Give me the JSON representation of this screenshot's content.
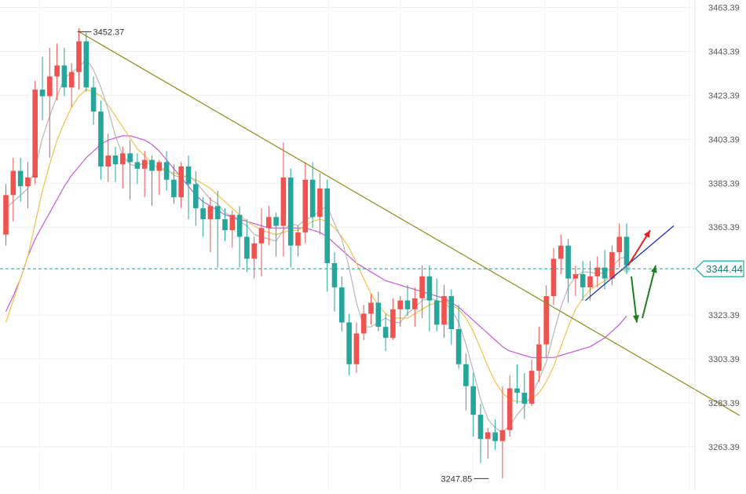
{
  "chart_data": {
    "type": "candlestick",
    "title": "",
    "xlabel": "",
    "ylabel": "",
    "y_axis": {
      "position": "right",
      "ticks": [
        "3463.39",
        "3443.39",
        "3423.39",
        "3403.39",
        "3383.39",
        "3363.39",
        "3323.39",
        "3303.39",
        "3283.39",
        "3263.39"
      ],
      "range": [
        3243.7,
        3466.8
      ]
    },
    "grid": true,
    "colors": {
      "up": "#ef5350",
      "down": "#26a69a",
      "ma_fast": "#b7b7b7",
      "ma_mid": "#f3c04a",
      "ma_slow": "#c65bd6",
      "trendline": "#8c8c1e",
      "support": "#1f2bbf",
      "arrow_up": "#e01f1f",
      "arrow_green": "#1e7e1e"
    },
    "current_price": {
      "label": "3344.44",
      "value": 3344.44
    },
    "annotations": [
      {
        "label": "3452.37",
        "value": 3452.37,
        "kind": "high"
      },
      {
        "label": "3247.85",
        "value": 3247.85,
        "kind": "low"
      }
    ],
    "candles": [
      [
        3360,
        3383,
        3355,
        3378
      ],
      [
        3378,
        3395,
        3366,
        3389
      ],
      [
        3389,
        3395,
        3375,
        3382
      ],
      [
        3382,
        3393,
        3372,
        3386
      ],
      [
        3386,
        3430,
        3383,
        3426
      ],
      [
        3426,
        3441,
        3412,
        3423
      ],
      [
        3423,
        3445,
        3395,
        3432
      ],
      [
        3432,
        3447,
        3421,
        3437
      ],
      [
        3437,
        3445,
        3423,
        3427
      ],
      [
        3427,
        3438,
        3418,
        3434
      ],
      [
        3434,
        3454,
        3426,
        3448
      ],
      [
        3448,
        3452,
        3425,
        3427
      ],
      [
        3427,
        3432,
        3410,
        3416
      ],
      [
        3416,
        3421,
        3385,
        3391
      ],
      [
        3391,
        3406,
        3384,
        3396
      ],
      [
        3396,
        3400,
        3384,
        3392
      ],
      [
        3392,
        3400,
        3381,
        3397
      ],
      [
        3397,
        3403,
        3376,
        3393
      ],
      [
        3393,
        3397,
        3383,
        3390
      ],
      [
        3390,
        3398,
        3377,
        3394
      ],
      [
        3394,
        3396,
        3373,
        3389
      ],
      [
        3389,
        3394,
        3378,
        3393
      ],
      [
        3393,
        3398,
        3380,
        3385
      ],
      [
        3385,
        3392,
        3374,
        3377
      ],
      [
        3377,
        3393,
        3372,
        3391
      ],
      [
        3391,
        3396,
        3367,
        3383
      ],
      [
        3383,
        3389,
        3364,
        3372
      ],
      [
        3372,
        3377,
        3359,
        3367
      ],
      [
        3367,
        3377,
        3352,
        3373
      ],
      [
        3373,
        3380,
        3345,
        3367
      ],
      [
        3367,
        3372,
        3357,
        3362
      ],
      [
        3362,
        3371,
        3354,
        3369
      ],
      [
        3369,
        3373,
        3345,
        3359
      ],
      [
        3359,
        3367,
        3343,
        3349
      ],
      [
        3349,
        3359,
        3340,
        3356
      ],
      [
        3356,
        3372,
        3341,
        3363
      ],
      [
        3363,
        3373,
        3355,
        3368
      ],
      [
        3368,
        3370,
        3350,
        3364
      ],
      [
        3364,
        3402,
        3350,
        3386
      ],
      [
        3386,
        3390,
        3345,
        3355
      ],
      [
        3355,
        3364,
        3350,
        3361
      ],
      [
        3361,
        3393,
        3356,
        3385
      ],
      [
        3385,
        3393,
        3363,
        3368
      ],
      [
        3368,
        3388,
        3360,
        3381
      ],
      [
        3381,
        3385,
        3334,
        3347
      ],
      [
        3347,
        3352,
        3325,
        3336
      ],
      [
        3336,
        3341,
        3316,
        3320
      ],
      [
        3320,
        3324,
        3296,
        3301
      ],
      [
        3301,
        3320,
        3297,
        3315
      ],
      [
        3315,
        3328,
        3312,
        3324
      ],
      [
        3324,
        3333,
        3319,
        3329
      ],
      [
        3329,
        3334,
        3316,
        3318
      ],
      [
        3318,
        3324,
        3307,
        3313
      ],
      [
        3313,
        3331,
        3312,
        3326
      ],
      [
        3326,
        3332,
        3318,
        3330
      ],
      [
        3330,
        3337,
        3323,
        3326
      ],
      [
        3326,
        3336,
        3318,
        3331
      ],
      [
        3331,
        3346,
        3322,
        3341
      ],
      [
        3341,
        3346,
        3316,
        3330
      ],
      [
        3330,
        3340,
        3316,
        3319
      ],
      [
        3319,
        3337,
        3313,
        3332
      ],
      [
        3332,
        3335,
        3310,
        3317
      ],
      [
        3317,
        3328,
        3299,
        3301
      ],
      [
        3301,
        3306,
        3280,
        3291
      ],
      [
        3291,
        3297,
        3268,
        3278
      ],
      [
        3278,
        3283,
        3256,
        3267
      ],
      [
        3267,
        3272,
        3258,
        3270
      ],
      [
        3270,
        3276,
        3262,
        3266
      ],
      [
        3266,
        3291,
        3249,
        3271
      ],
      [
        3271,
        3296,
        3268,
        3290
      ],
      [
        3290,
        3301,
        3283,
        3288
      ],
      [
        3288,
        3297,
        3276,
        3283
      ],
      [
        3283,
        3303,
        3282,
        3298
      ],
      [
        3298,
        3318,
        3293,
        3310
      ],
      [
        3310,
        3337,
        3304,
        3332
      ],
      [
        3332,
        3354,
        3328,
        3349
      ],
      [
        3349,
        3360,
        3342,
        3355
      ],
      [
        3355,
        3358,
        3329,
        3340
      ],
      [
        3340,
        3346,
        3332,
        3342
      ],
      [
        3342,
        3348,
        3330,
        3336
      ],
      [
        3336,
        3348,
        3330,
        3341
      ],
      [
        3341,
        3350,
        3336,
        3345
      ],
      [
        3345,
        3353,
        3335,
        3340
      ],
      [
        3340,
        3355,
        3337,
        3352
      ],
      [
        3352,
        3365,
        3345,
        3359
      ],
      [
        3359,
        3365,
        3342,
        3346
      ]
    ],
    "ma_fast": [
      3372,
      3375,
      3378,
      3381,
      3390,
      3404,
      3414,
      3423,
      3431,
      3434,
      3436,
      3440,
      3435,
      3427,
      3417,
      3405,
      3396,
      3392,
      3391,
      3393,
      3392,
      3390,
      3390,
      3387,
      3386,
      3387,
      3384,
      3380,
      3376,
      3374,
      3370,
      3368,
      3366,
      3364,
      3360,
      3359,
      3358,
      3357,
      3362,
      3365,
      3364,
      3367,
      3368,
      3371,
      3373,
      3365,
      3358,
      3345,
      3329,
      3318,
      3318,
      3320,
      3322,
      3320,
      3320,
      3324,
      3327,
      3330,
      3331,
      3330,
      3329,
      3326,
      3320,
      3310,
      3298,
      3285,
      3276,
      3272,
      3270,
      3273,
      3278,
      3282,
      3287,
      3294,
      3302,
      3315,
      3327,
      3336,
      3341,
      3343,
      3343,
      3342,
      3343,
      3345,
      3349,
      3350
    ],
    "ma_mid": [
      3320,
      3330,
      3340,
      3350,
      3365,
      3380,
      3392,
      3403,
      3411,
      3418,
      3423,
      3426,
      3425,
      3423,
      3419,
      3414,
      3409,
      3404,
      3399,
      3396,
      3392,
      3390,
      3389,
      3388,
      3387,
      3386,
      3385,
      3383,
      3381,
      3378,
      3375,
      3372,
      3369,
      3366,
      3364,
      3362,
      3361,
      3360,
      3361,
      3362,
      3362,
      3364,
      3366,
      3367,
      3366,
      3363,
      3359,
      3354,
      3347,
      3340,
      3333,
      3328,
      3324,
      3322,
      3322,
      3322,
      3324,
      3326,
      3328,
      3329,
      3330,
      3328,
      3326,
      3322,
      3316,
      3308,
      3300,
      3293,
      3288,
      3285,
      3284,
      3284,
      3285,
      3288,
      3293,
      3300,
      3309,
      3318,
      3326,
      3331,
      3335,
      3337,
      3339,
      3341,
      3343,
      3345
    ],
    "ma_slow": [
      3325,
      3332,
      3340,
      3350,
      3358,
      3364,
      3370,
      3376,
      3382,
      3387,
      3391,
      3395,
      3398,
      3401,
      3403,
      3404,
      3405,
      3405,
      3404,
      3403,
      3401,
      3398,
      3394,
      3390,
      3386,
      3382,
      3378,
      3375,
      3373,
      3371,
      3369,
      3368,
      3367,
      3366,
      3365,
      3364,
      3363,
      3363,
      3363,
      3363,
      3363,
      3363,
      3362,
      3361,
      3359,
      3356,
      3353,
      3350,
      3347,
      3345,
      3343,
      3341,
      3339,
      3338,
      3337,
      3336,
      3335,
      3334,
      3333,
      3332,
      3331,
      3329,
      3327,
      3324,
      3321,
      3318,
      3315,
      3312,
      3309,
      3307,
      3306,
      3305,
      3304,
      3304,
      3304,
      3304,
      3305,
      3306,
      3307,
      3308,
      3309,
      3311,
      3313,
      3316,
      3319,
      3323
    ]
  }
}
